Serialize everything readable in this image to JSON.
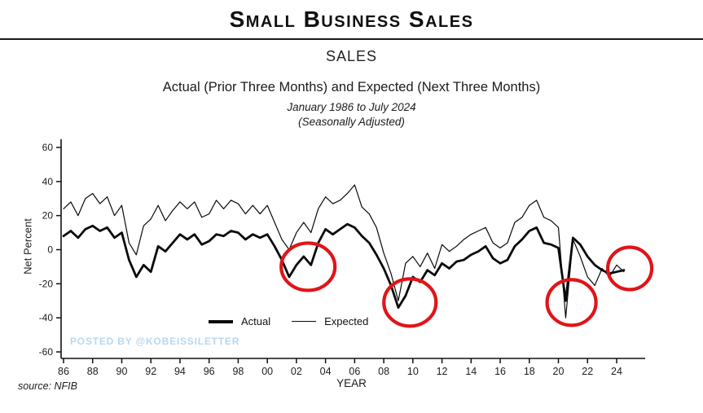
{
  "page": {
    "header": "Small Business Sales",
    "watermark": "POSTED BY @KOBEISSILETTER",
    "source": "source: NFIB"
  },
  "chart_data": {
    "type": "line",
    "title": "SALES",
    "subtitle": "Actual (Prior Three Months) and Expected (Next Three Months)",
    "period": "January 1986 to July 2024",
    "adjustment": "(Seasonally Adjusted)",
    "xlabel": "YEAR",
    "ylabel": "Net Percent",
    "ylim": [
      -60,
      60
    ],
    "xlim": [
      1986,
      2025
    ],
    "grid": false,
    "legend_position": "bottom-center-inside",
    "y_ticks": [
      60,
      40,
      20,
      0,
      -20,
      -40,
      -60
    ],
    "x_ticks": {
      "years": [
        1986,
        1988,
        1990,
        1992,
        1994,
        1996,
        1998,
        2000,
        2002,
        2004,
        2006,
        2008,
        2010,
        2012,
        2014,
        2016,
        2018,
        2020,
        2022,
        2024
      ],
      "labels": [
        "86",
        "88",
        "90",
        "92",
        "94",
        "96",
        "98",
        "00",
        "02",
        "04",
        "06",
        "08",
        "10",
        "12",
        "14",
        "16",
        "18",
        "20",
        "22",
        "24"
      ]
    },
    "x": [
      1986,
      1986.5,
      1987,
      1987.5,
      1988,
      1988.5,
      1989,
      1989.5,
      1990,
      1990.5,
      1991,
      1991.5,
      1992,
      1992.5,
      1993,
      1993.5,
      1994,
      1994.5,
      1995,
      1995.5,
      1996,
      1996.5,
      1997,
      1997.5,
      1998,
      1998.5,
      1999,
      1999.5,
      2000,
      2000.5,
      2001,
      2001.5,
      2002,
      2002.5,
      2003,
      2003.5,
      2004,
      2004.5,
      2005,
      2005.5,
      2006,
      2006.5,
      2007,
      2007.5,
      2008,
      2008.5,
      2009,
      2009.5,
      2010,
      2010.5,
      2011,
      2011.5,
      2012,
      2012.5,
      2013,
      2013.5,
      2014,
      2014.5,
      2015,
      2015.5,
      2016,
      2016.5,
      2017,
      2017.5,
      2018,
      2018.5,
      2019,
      2019.5,
      2020,
      2020.5,
      2021,
      2021.5,
      2022,
      2022.5,
      2023,
      2023.5,
      2024,
      2024.5
    ],
    "series": [
      {
        "name": "Actual",
        "style": "thick",
        "values": [
          8,
          11,
          7,
          12,
          14,
          11,
          13,
          7,
          10,
          -6,
          -16,
          -9,
          -13,
          2,
          -1,
          4,
          9,
          6,
          9,
          3,
          5,
          9,
          8,
          11,
          10,
          6,
          9,
          7,
          9,
          2,
          -6,
          -16,
          -9,
          -4,
          -9,
          4,
          12,
          9,
          12,
          15,
          13,
          8,
          4,
          -3,
          -11,
          -21,
          -34,
          -27,
          -16,
          -19,
          -12,
          -15,
          -8,
          -11,
          -7,
          -6,
          -3,
          -1,
          2,
          -5,
          -8,
          -6,
          2,
          6,
          11,
          13,
          4,
          3,
          1,
          -30,
          7,
          3,
          -4,
          -9,
          -12,
          -14,
          -13,
          -12
        ]
      },
      {
        "name": "Expected",
        "style": "thin",
        "values": [
          24,
          28,
          20,
          30,
          33,
          27,
          31,
          20,
          26,
          4,
          -3,
          14,
          18,
          26,
          17,
          23,
          28,
          24,
          28,
          19,
          21,
          29,
          24,
          29,
          27,
          21,
          26,
          21,
          26,
          16,
          6,
          0,
          10,
          16,
          10,
          24,
          31,
          27,
          29,
          33,
          38,
          25,
          21,
          13,
          -2,
          -14,
          -30,
          -8,
          -4,
          -10,
          -2,
          -11,
          3,
          -1,
          2,
          6,
          9,
          11,
          13,
          4,
          1,
          4,
          16,
          19,
          26,
          29,
          19,
          17,
          13,
          -40,
          6,
          -4,
          -16,
          -21,
          -11,
          -16,
          -9,
          -13
        ]
      }
    ],
    "annotations": [
      {
        "type": "circle",
        "year": 2002.8,
        "value": -10,
        "rx": 33,
        "ry": 29
      },
      {
        "type": "circle",
        "year": 2009.8,
        "value": -31,
        "rx": 32,
        "ry": 29
      },
      {
        "type": "circle",
        "year": 2020.9,
        "value": -31,
        "rx": 30,
        "ry": 28
      },
      {
        "type": "circle",
        "year": 2024.9,
        "value": -11,
        "rx": 27,
        "ry": 26
      }
    ],
    "line_color": "#0a0a0a",
    "axis_color": "#111111",
    "circle_color": "#e01418",
    "watermark_color": "#b9d7ee"
  }
}
